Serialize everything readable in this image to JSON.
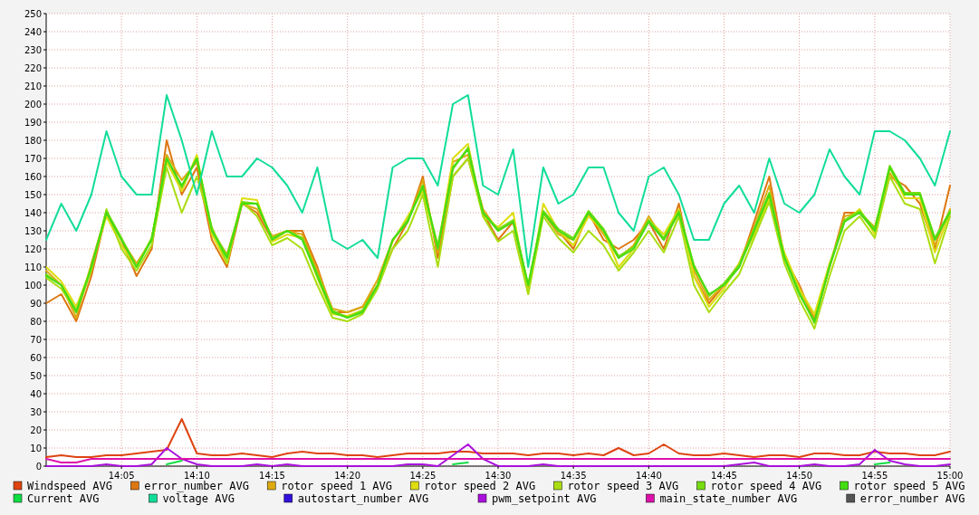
{
  "chart_data": {
    "type": "line",
    "x": [
      14,
      14.0167,
      14.0333,
      14.05,
      14.0667,
      14.0833,
      14.1,
      14.1167,
      14.1333,
      14.15,
      14.1667,
      14.1833,
      14.2,
      14.2167,
      14.2333,
      14.25,
      14.2667,
      14.2833,
      14.3,
      14.3167,
      14.3333,
      14.35,
      14.3667,
      14.3833,
      14.4,
      14.4167,
      14.4333,
      14.45,
      14.4667,
      14.4833,
      14.5,
      14.5167,
      14.5333,
      14.55,
      14.5667,
      14.5833,
      14.6,
      14.6167,
      14.6333,
      14.65,
      14.6667,
      14.6833,
      14.7,
      14.7167,
      14.7333,
      14.75,
      14.7667,
      14.7833,
      14.8,
      14.8167,
      14.8333,
      14.85,
      14.8667,
      14.8833,
      14.9,
      14.9167,
      14.9333,
      14.95,
      14.9667,
      14.9833,
      15
    ],
    "series": [
      {
        "name": "Windspeed AVG",
        "color": "#dd4411",
        "values": [
          5,
          6,
          5,
          5,
          6,
          6,
          7,
          8,
          9,
          26,
          7,
          6,
          6,
          7,
          6,
          5,
          7,
          8,
          7,
          7,
          6,
          6,
          5,
          6,
          7,
          7,
          7,
          8,
          8,
          7,
          7,
          7,
          6,
          7,
          7,
          6,
          7,
          6,
          10,
          6,
          7,
          12,
          7,
          6,
          6,
          7,
          6,
          5,
          6,
          6,
          5,
          7,
          7,
          6,
          6,
          8,
          7,
          7,
          6,
          6,
          8
        ]
      },
      {
        "name": "error_number AVG",
        "color": "#dd7711",
        "values": [
          90,
          95,
          80,
          105,
          140,
          125,
          105,
          120,
          180,
          150,
          165,
          125,
          110,
          145,
          140,
          125,
          130,
          130,
          110,
          85,
          85,
          88,
          100,
          120,
          135,
          160,
          115,
          160,
          170,
          140,
          125,
          135,
          98,
          140,
          130,
          120,
          140,
          125,
          120,
          125,
          135,
          120,
          145,
          105,
          90,
          100,
          110,
          135,
          160,
          115,
          100,
          80,
          110,
          140,
          140,
          130,
          160,
          155,
          145,
          120,
          155
        ]
      },
      {
        "name": "rotor speed 1 AVG",
        "color": "#ddaa11",
        "values": [
          108,
          100,
          82,
          112,
          140,
          125,
          112,
          125,
          172,
          158,
          168,
          130,
          117,
          145,
          142,
          127,
          130,
          128,
          108,
          87,
          85,
          88,
          103,
          125,
          135,
          158,
          118,
          168,
          172,
          142,
          130,
          135,
          100,
          140,
          128,
          125,
          140,
          128,
          115,
          122,
          138,
          125,
          140,
          108,
          92,
          100,
          112,
          132,
          155,
          115,
          98,
          82,
          110,
          138,
          140,
          132,
          162,
          150,
          150,
          122,
          142
        ]
      },
      {
        "name": "rotor speed 2 AVG",
        "color": "#dddd11",
        "values": [
          110,
          102,
          88,
          110,
          138,
          122,
          110,
          126,
          168,
          152,
          172,
          128,
          112,
          148,
          147,
          124,
          128,
          126,
          104,
          84,
          83,
          86,
          100,
          124,
          138,
          152,
          120,
          170,
          178,
          138,
          132,
          140,
          95,
          145,
          130,
          122,
          138,
          130,
          110,
          120,
          136,
          128,
          142,
          105,
          88,
          98,
          112,
          128,
          148,
          118,
          98,
          84,
          112,
          135,
          142,
          128,
          165,
          148,
          148,
          118,
          140
        ]
      },
      {
        "name": "rotor speed 3 AVG",
        "color": "#aadd11",
        "values": [
          104,
          98,
          85,
          108,
          142,
          120,
          108,
          122,
          165,
          140,
          160,
          132,
          112,
          146,
          138,
          122,
          126,
          120,
          100,
          82,
          80,
          84,
          98,
          120,
          130,
          150,
          110,
          160,
          170,
          138,
          124,
          130,
          95,
          138,
          126,
          118,
          130,
          122,
          108,
          118,
          130,
          118,
          138,
          100,
          85,
          96,
          106,
          126,
          146,
          112,
          92,
          76,
          105,
          130,
          138,
          126,
          160,
          145,
          142,
          112,
          138
        ]
      },
      {
        "name": "rotor speed 4 AVG",
        "color": "#77dd11",
        "values": [
          106,
          100,
          86,
          110,
          141,
          126,
          110,
          126,
          170,
          154,
          170,
          131,
          116,
          146,
          145,
          126,
          130,
          126,
          106,
          86,
          82,
          86,
          100,
          125,
          136,
          154,
          122,
          164,
          176,
          140,
          131,
          136,
          100,
          141,
          131,
          126,
          141,
          131,
          116,
          121,
          136,
          126,
          141,
          111,
          94,
          101,
          111,
          131,
          151,
          116,
          96,
          79,
          111,
          136,
          141,
          131,
          166,
          151,
          151,
          126,
          141
        ]
      },
      {
        "name": "rotor speed 5 AVG",
        "color": "#44dd11",
        "values": [
          105,
          100,
          85,
          110,
          140,
          125,
          110,
          125,
          170,
          155,
          170,
          130,
          115,
          145,
          145,
          125,
          130,
          125,
          105,
          85,
          82,
          85,
          100,
          125,
          135,
          155,
          120,
          165,
          175,
          140,
          130,
          135,
          100,
          140,
          130,
          125,
          140,
          130,
          115,
          120,
          135,
          125,
          140,
          110,
          95,
          100,
          110,
          130,
          150,
          115,
          95,
          80,
          110,
          135,
          140,
          130,
          165,
          150,
          150,
          125,
          140
        ]
      },
      {
        "name": "Current AVG",
        "color": "#11dd44",
        "values": [
          null,
          null,
          null,
          null,
          null,
          null,
          null,
          null,
          1,
          3,
          null,
          null,
          null,
          null,
          null,
          null,
          null,
          null,
          null,
          null,
          null,
          null,
          null,
          null,
          null,
          null,
          null,
          1,
          2,
          null,
          null,
          null,
          null,
          null,
          null,
          null,
          null,
          null,
          null,
          null,
          null,
          null,
          null,
          null,
          null,
          null,
          null,
          null,
          null,
          null,
          null,
          null,
          null,
          null,
          null,
          1,
          2,
          null,
          null,
          null,
          null
        ]
      },
      {
        "name": "voltage AVG",
        "color": "#11dd99",
        "values": [
          125,
          145,
          130,
          150,
          185,
          160,
          150,
          150,
          205,
          180,
          150,
          185,
          160,
          160,
          170,
          165,
          155,
          140,
          165,
          125,
          120,
          125,
          115,
          165,
          170,
          170,
          155,
          200,
          205,
          155,
          150,
          175,
          110,
          165,
          145,
          150,
          165,
          165,
          140,
          130,
          160,
          165,
          150,
          125,
          125,
          145,
          155,
          140,
          170,
          145,
          140,
          150,
          175,
          160,
          150,
          185,
          185,
          180,
          170,
          155,
          185
        ]
      },
      {
        "name": "autostart_number AVG",
        "color": "#3311dd",
        "values": [
          null,
          null,
          null,
          null,
          null,
          null,
          null,
          null,
          null,
          null,
          null,
          null,
          null,
          null,
          null,
          null,
          null,
          null,
          null,
          null,
          null,
          null,
          null,
          null,
          null,
          null,
          null,
          null,
          null,
          null,
          null,
          null,
          null,
          null,
          null,
          null,
          null,
          null,
          null,
          null,
          null,
          null,
          null,
          null,
          null,
          null,
          null,
          null,
          null,
          null,
          null,
          null,
          null,
          null,
          null,
          null,
          null,
          null,
          null,
          null,
          null
        ]
      },
      {
        "name": "pwm_setpoint AVG",
        "color": "#aa11dd",
        "values": [
          0,
          0,
          0,
          0,
          1,
          0,
          0,
          1,
          10,
          4,
          1,
          0,
          0,
          0,
          1,
          0,
          1,
          0,
          0,
          0,
          0,
          0,
          0,
          0,
          1,
          1,
          0,
          6,
          12,
          4,
          0,
          0,
          0,
          1,
          0,
          0,
          0,
          0,
          0,
          0,
          0,
          0,
          0,
          0,
          0,
          0,
          1,
          2,
          0,
          0,
          0,
          1,
          0,
          0,
          1,
          9,
          3,
          1,
          0,
          0,
          1
        ]
      },
      {
        "name": "main_state_number AVG",
        "color": "#dd11aa",
        "values": [
          4,
          2,
          2,
          4,
          4,
          4,
          4,
          4,
          4,
          4,
          4,
          4,
          4,
          4,
          4,
          4,
          4,
          4,
          4,
          4,
          4,
          4,
          4,
          4,
          4,
          4,
          4,
          4,
          4,
          4,
          4,
          4,
          4,
          4,
          4,
          4,
          4,
          4,
          4,
          4,
          4,
          4,
          4,
          4,
          4,
          4,
          4,
          4,
          4,
          4,
          4,
          4,
          4,
          4,
          4,
          4,
          4,
          4,
          4,
          4,
          4
        ]
      },
      {
        "name": "error_number AVG",
        "color": "#555555",
        "values": [
          null,
          null,
          null,
          null,
          null,
          null,
          null,
          null,
          null,
          null,
          null,
          null,
          null,
          null,
          null,
          null,
          null,
          null,
          null,
          null,
          null,
          null,
          null,
          null,
          null,
          null,
          null,
          null,
          null,
          null,
          null,
          null,
          null,
          null,
          null,
          null,
          null,
          null,
          null,
          null,
          null,
          null,
          null,
          null,
          null,
          null,
          null,
          null,
          null,
          null,
          null,
          null,
          null,
          null,
          null,
          null,
          null,
          null,
          null,
          null,
          null
        ]
      }
    ],
    "xlim": [
      14,
      15
    ],
    "xticks": [
      {
        "value": 14.0833,
        "label": "14:05"
      },
      {
        "value": 14.1667,
        "label": "14:10"
      },
      {
        "value": 14.25,
        "label": "14:15"
      },
      {
        "value": 14.3333,
        "label": "14:20"
      },
      {
        "value": 14.4167,
        "label": "14:25"
      },
      {
        "value": 14.5,
        "label": "14:30"
      },
      {
        "value": 14.5833,
        "label": "14:35"
      },
      {
        "value": 14.6667,
        "label": "14:40"
      },
      {
        "value": 14.75,
        "label": "14:45"
      },
      {
        "value": 14.8333,
        "label": "14:50"
      },
      {
        "value": 14.9167,
        "label": "14:55"
      },
      {
        "value": 15,
        "label": "15:00"
      }
    ],
    "ylim": [
      0,
      250
    ],
    "yticks": [
      0,
      10,
      20,
      30,
      40,
      50,
      60,
      70,
      80,
      90,
      100,
      110,
      120,
      130,
      140,
      150,
      160,
      170,
      180,
      190,
      200,
      210,
      220,
      230,
      240,
      250
    ],
    "grid": true,
    "legend": "bottom",
    "marker": "none",
    "line_style": "solid"
  }
}
